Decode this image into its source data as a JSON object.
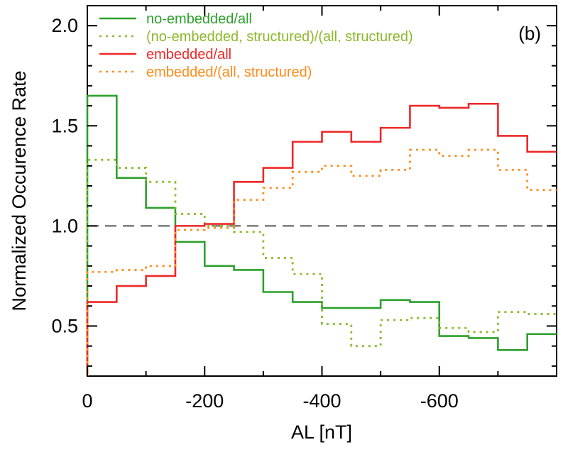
{
  "chart_data": {
    "type": "line",
    "step": true,
    "panel_label": "(b)",
    "xlabel": "AL [nT]",
    "ylabel": "Normalized Occurence Rate",
    "xlim": [
      0,
      -800
    ],
    "ylim": [
      0.25,
      2.1
    ],
    "xticks": [
      0,
      -200,
      -400,
      -600
    ],
    "yticks": [
      0.5,
      1.0,
      1.5,
      2.0
    ],
    "ytick_labels": [
      "0.5",
      "1.0",
      "1.5",
      "2.0"
    ],
    "reference_line": 1.0,
    "bin_edges": [
      0,
      -50,
      -100,
      -150,
      -200,
      -250,
      -300,
      -350,
      -400,
      -450,
      -500,
      -550,
      -600,
      -650,
      -700,
      -750,
      -800
    ],
    "legend_position": "top-left",
    "series": [
      {
        "name": "no-embedded/all",
        "color": "#2ca02c",
        "style": "solid",
        "values": [
          1.65,
          1.24,
          1.09,
          0.92,
          0.8,
          0.78,
          0.67,
          0.62,
          0.59,
          0.59,
          0.63,
          0.62,
          0.45,
          0.44,
          0.38,
          0.46
        ]
      },
      {
        "name": "(no-embedded, structured)/(all, structured)",
        "color": "#8cb82b",
        "style": "dotted",
        "values": [
          1.33,
          1.29,
          1.22,
          1.06,
          1.0,
          0.97,
          0.84,
          0.76,
          0.51,
          0.4,
          0.53,
          0.54,
          0.49,
          0.47,
          0.57,
          0.56
        ]
      },
      {
        "name": "embedded/all",
        "color": "#ee2828",
        "style": "solid",
        "values": [
          0.62,
          0.7,
          0.75,
          1.0,
          1.01,
          1.22,
          1.29,
          1.42,
          1.47,
          1.42,
          1.49,
          1.6,
          1.59,
          1.61,
          1.45,
          1.37
        ]
      },
      {
        "name": "embedded/(all, structured)",
        "color": "#ff8c1a",
        "style": "dotted",
        "values": [
          0.77,
          0.78,
          0.8,
          0.98,
          0.99,
          1.13,
          1.19,
          1.27,
          1.3,
          1.25,
          1.28,
          1.38,
          1.35,
          1.38,
          1.28,
          1.18
        ]
      }
    ]
  }
}
